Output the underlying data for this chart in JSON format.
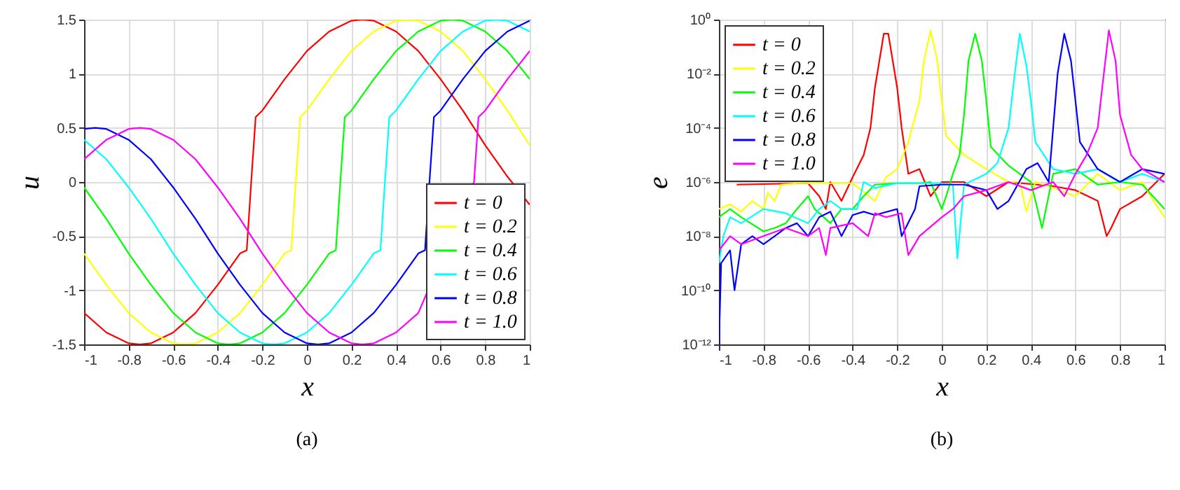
{
  "chart_data": [
    {
      "type": "line",
      "xlabel": "x",
      "ylabel": "u",
      "annotations": [
        "(a)"
      ],
      "xlim": [
        -1,
        1
      ],
      "ylim": [
        -1.5,
        1.5
      ],
      "xticks": [
        -1,
        -0.8,
        -0.6,
        -0.4,
        -0.2,
        0,
        0.2,
        0.4,
        0.6,
        0.8,
        1
      ],
      "yticks": [
        -1.5,
        -1,
        -0.5,
        0,
        0.5,
        1,
        1.5
      ],
      "grid": true,
      "legend": "bottom right",
      "series": [
        {
          "name": "t = 0",
          "color": "#ff0000",
          "x": [
            -1,
            -0.9,
            -0.8,
            -0.75,
            -0.7,
            -0.6,
            -0.5,
            -0.4,
            -0.3,
            -0.27,
            -0.25,
            -0.23,
            -0.2,
            -0.1,
            0,
            0.1,
            0.2,
            0.25,
            0.3,
            0.4,
            0.5,
            0.6,
            0.7,
            0.8,
            0.9,
            1
          ],
          "values": [
            -1.21,
            -1.39,
            -1.49,
            -1.5,
            -1.49,
            -1.39,
            -1.21,
            -0.95,
            -0.66,
            -0.63,
            0,
            0.6,
            0.66,
            0.95,
            1.21,
            1.39,
            1.49,
            1.5,
            1.49,
            1.39,
            1.21,
            0.95,
            0.66,
            0.34,
            0.05,
            -0.21
          ]
        },
        {
          "name": "t = 0.2",
          "color": "#ffff00",
          "x": [
            -1,
            -0.9,
            -0.8,
            -0.7,
            -0.6,
            -0.55,
            -0.5,
            -0.4,
            -0.3,
            -0.2,
            -0.1,
            -0.07,
            -0.05,
            -0.03,
            0,
            0.1,
            0.2,
            0.3,
            0.4,
            0.45,
            0.5,
            0.6,
            0.7,
            0.8,
            0.9,
            1
          ],
          "values": [
            -0.66,
            -0.95,
            -1.21,
            -1.39,
            -1.49,
            -1.5,
            -1.49,
            -1.39,
            -1.21,
            -0.95,
            -0.66,
            -0.63,
            0,
            0.6,
            0.66,
            0.95,
            1.21,
            1.39,
            1.49,
            1.5,
            1.49,
            1.39,
            1.21,
            0.95,
            0.66,
            0.34
          ]
        },
        {
          "name": "t = 0.4",
          "color": "#00ff00",
          "x": [
            -1,
            -0.9,
            -0.8,
            -0.7,
            -0.6,
            -0.5,
            -0.4,
            -0.35,
            -0.3,
            -0.2,
            -0.1,
            0,
            0.1,
            0.13,
            0.15,
            0.17,
            0.2,
            0.3,
            0.4,
            0.5,
            0.6,
            0.65,
            0.7,
            0.8,
            0.9,
            1
          ],
          "values": [
            -0.05,
            -0.34,
            -0.66,
            -0.95,
            -1.21,
            -1.39,
            -1.49,
            -1.5,
            -1.49,
            -1.39,
            -1.21,
            -0.95,
            -0.66,
            -0.63,
            0,
            0.6,
            0.66,
            0.95,
            1.21,
            1.39,
            1.49,
            1.5,
            1.49,
            1.39,
            1.21,
            0.95
          ]
        },
        {
          "name": "t = 0.6",
          "color": "#00ffff",
          "x": [
            -1,
            -0.9,
            -0.8,
            -0.7,
            -0.6,
            -0.5,
            -0.4,
            -0.3,
            -0.2,
            -0.15,
            -0.1,
            0,
            0.1,
            0.2,
            0.3,
            0.33,
            0.35,
            0.37,
            0.4,
            0.5,
            0.6,
            0.7,
            0.8,
            0.85,
            0.9,
            1
          ],
          "values": [
            0.39,
            0.21,
            -0.05,
            -0.34,
            -0.66,
            -0.95,
            -1.21,
            -1.39,
            -1.49,
            -1.5,
            -1.49,
            -1.39,
            -1.21,
            -0.95,
            -0.66,
            -0.63,
            0,
            0.6,
            0.66,
            0.95,
            1.21,
            1.39,
            1.49,
            1.5,
            1.49,
            1.39
          ]
        },
        {
          "name": "t = 0.8",
          "color": "#0000ff",
          "x": [
            -1,
            -0.95,
            -0.9,
            -0.8,
            -0.7,
            -0.6,
            -0.5,
            -0.4,
            -0.3,
            -0.2,
            -0.1,
            0,
            0.05,
            0.1,
            0.2,
            0.3,
            0.4,
            0.5,
            0.53,
            0.55,
            0.57,
            0.6,
            0.7,
            0.8,
            0.9,
            1
          ],
          "values": [
            0.49,
            0.5,
            0.49,
            0.39,
            0.21,
            -0.05,
            -0.34,
            -0.66,
            -0.95,
            -1.21,
            -1.39,
            -1.49,
            -1.5,
            -1.49,
            -1.39,
            -1.21,
            -0.95,
            -0.66,
            -0.63,
            0,
            0.6,
            0.66,
            0.95,
            1.21,
            1.39,
            1.49
          ]
        },
        {
          "name": "t = 1.0",
          "color": "#ff00ff",
          "x": [
            -1,
            -0.9,
            -0.8,
            -0.75,
            -0.7,
            -0.6,
            -0.5,
            -0.4,
            -0.3,
            -0.2,
            -0.1,
            0,
            0.1,
            0.2,
            0.25,
            0.3,
            0.4,
            0.5,
            0.6,
            0.7,
            0.73,
            0.75,
            0.77,
            0.8,
            0.9,
            1
          ],
          "values": [
            0.21,
            0.39,
            0.49,
            0.5,
            0.49,
            0.39,
            0.21,
            -0.05,
            -0.34,
            -0.66,
            -0.95,
            -1.21,
            -1.39,
            -1.49,
            -1.5,
            -1.49,
            -1.39,
            -1.21,
            null,
            null,
            null,
            0,
            0.6,
            0.66,
            0.95,
            1.21
          ]
        }
      ]
    },
    {
      "type": "line",
      "xlabel": "x",
      "ylabel": "e",
      "annotations": [
        "(b)"
      ],
      "log": "y",
      "xlim": [
        -1,
        1
      ],
      "ylim": [
        1e-12,
        1
      ],
      "xticks": [
        -1,
        -0.8,
        -0.6,
        -0.4,
        -0.2,
        0,
        0.2,
        0.4,
        0.6,
        0.8,
        1
      ],
      "yticks": [
        {
          "value": 1e-12,
          "label": "10⁻¹²"
        },
        {
          "value": 1e-10,
          "label": "10⁻¹⁰"
        },
        {
          "value": 1e-08,
          "label": "10⁻⁸"
        },
        {
          "value": 1e-06,
          "label": "10⁻⁶"
        },
        {
          "value": 0.0001,
          "label": "10⁻⁴"
        },
        {
          "value": 0.01,
          "label": "10⁻²"
        },
        {
          "value": 1,
          "label": "10⁰"
        }
      ],
      "grid": true,
      "legend": "top left",
      "series": [
        {
          "name": "t = 0",
          "color": "#ff0000",
          "x": [
            -0.92,
            -0.6,
            -0.55,
            -0.52,
            -0.5,
            -0.45,
            -0.4,
            -0.35,
            -0.32,
            -0.3,
            -0.28,
            -0.26,
            -0.24,
            -0.22,
            -0.2,
            -0.18,
            -0.15,
            -0.1,
            -0.05,
            0,
            0.1,
            0.2,
            0.3,
            0.5,
            0.6,
            0.7,
            0.74,
            0.76,
            0.8,
            0.9,
            1
          ],
          "values": [
            8e-07,
            9e-07,
            3e-07,
            1e-07,
            1e-06,
            2e-07,
            1.5e-06,
            1e-05,
            0.0001,
            0.003,
            0.03,
            0.3,
            0.3,
            0.03,
            0.003,
            0.0001,
            2e-06,
            3e-06,
            3e-07,
            1e-06,
            1e-06,
            3e-07,
            1e-06,
            7e-07,
            5e-07,
            2e-07,
            1e-08,
            2e-08,
            1e-07,
            3e-07,
            2e-06
          ]
        },
        {
          "name": "t = 0.2",
          "color": "#ffff00",
          "x": [
            -1,
            -0.95,
            -0.9,
            -0.85,
            -0.8,
            -0.78,
            -0.75,
            -0.72,
            -0.65,
            -0.5,
            -0.4,
            -0.3,
            -0.25,
            -0.2,
            -0.15,
            -0.1,
            -0.08,
            -0.05,
            -0.02,
            0,
            0.02,
            0.1,
            0.2,
            0.3,
            0.35,
            0.38,
            0.42,
            0.5,
            0.6,
            0.7,
            0.8,
            0.9,
            0.95,
            1
          ],
          "values": [
            1e-07,
            1.5e-07,
            8e-08,
            2e-07,
            1e-07,
            4e-07,
            2e-07,
            8e-07,
            9e-07,
            9e-07,
            9e-07,
            2e-07,
            1.5e-06,
            3e-06,
            3e-05,
            0.001,
            0.03,
            0.4,
            0.03,
            0.001,
            5e-05,
            1e-05,
            3e-06,
            1e-06,
            1e-06,
            8e-08,
            1e-06,
            6e-07,
            3e-07,
            2e-06,
            5e-07,
            1e-06,
            2e-07,
            5e-08
          ]
        },
        {
          "name": "t = 0.4",
          "color": "#00ff00",
          "x": [
            -1,
            -0.95,
            -0.9,
            -0.8,
            -0.75,
            -0.7,
            -0.65,
            -0.6,
            -0.57,
            -0.5,
            -0.45,
            -0.4,
            -0.35,
            -0.3,
            -0.2,
            -0.1,
            -0.05,
            0,
            0.02,
            0.05,
            0.08,
            0.1,
            0.12,
            0.15,
            0.18,
            0.2,
            0.22,
            0.3,
            0.4,
            0.45,
            0.5,
            0.6,
            0.7,
            0.8,
            0.9,
            1
          ],
          "values": [
            5e-08,
            1e-07,
            5e-08,
            1.5e-08,
            2e-08,
            3e-08,
            1e-07,
            3e-07,
            1e-07,
            3e-08,
            1e-07,
            1e-07,
            3e-07,
            8e-07,
            9e-07,
            9e-07,
            1e-06,
            1e-07,
            3e-07,
            2e-06,
            1e-05,
            0.0003,
            0.03,
            0.3,
            0.03,
            0.001,
            2e-05,
            4e-06,
            1e-06,
            2e-08,
            2e-06,
            3e-06,
            8e-07,
            1e-06,
            8e-07,
            1e-07
          ]
        },
        {
          "name": "t = 0.6",
          "color": "#00ffff",
          "x": [
            -1,
            -0.98,
            -0.95,
            -0.9,
            -0.8,
            -0.7,
            -0.6,
            -0.55,
            -0.5,
            -0.45,
            -0.38,
            -0.35,
            -0.3,
            -0.2,
            -0.1,
            0,
            0.05,
            0.07,
            0.1,
            0.2,
            0.25,
            0.3,
            0.32,
            0.35,
            0.38,
            0.4,
            0.42,
            0.5,
            0.6,
            0.7,
            0.8,
            0.9,
            1
          ],
          "values": [
            1e-09,
            1e-08,
            5e-08,
            3e-08,
            1e-07,
            7e-08,
            3e-08,
            1e-07,
            2e-07,
            1e-07,
            1e-07,
            1e-06,
            6e-07,
            9e-07,
            9e-07,
            9e-07,
            8e-07,
            1.5e-09,
            8e-07,
            2e-06,
            5e-06,
            0.0001,
            0.003,
            0.3,
            0.02,
            0.001,
            3e-05,
            3e-06,
            2e-06,
            3e-06,
            1e-06,
            2e-06,
            1e-06
          ]
        },
        {
          "name": "t = 0.8",
          "color": "#0000ff",
          "x": [
            -1,
            -0.99,
            -0.95,
            -0.93,
            -0.9,
            -0.85,
            -0.8,
            -0.75,
            -0.7,
            -0.65,
            -0.6,
            -0.55,
            -0.5,
            -0.45,
            -0.4,
            -0.35,
            -0.3,
            -0.2,
            -0.18,
            -0.12,
            -0.1,
            0,
            0.1,
            0.2,
            0.25,
            0.3,
            0.38,
            0.43,
            0.48,
            0.5,
            0.52,
            0.55,
            0.58,
            0.6,
            0.62,
            0.7,
            0.8,
            0.9,
            1
          ],
          "values": [
            1e-12,
            1e-09,
            3e-09,
            1e-10,
            5e-09,
            1e-08,
            5e-09,
            1e-08,
            2e-08,
            3e-08,
            1e-08,
            5e-08,
            8e-08,
            1e-08,
            6e-08,
            8e-08,
            6e-08,
            1e-07,
            1e-08,
            1e-07,
            7e-07,
            8e-07,
            8e-07,
            5e-07,
            1e-07,
            2e-07,
            3e-06,
            5e-06,
            1e-06,
            0.0001,
            0.01,
            0.3,
            0.03,
            0.001,
            3e-05,
            3e-06,
            1e-06,
            3e-06,
            2e-06
          ]
        },
        {
          "name": "t = 1.0",
          "color": "#ff00ff",
          "x": [
            -1,
            -0.95,
            -0.9,
            -0.8,
            -0.7,
            -0.6,
            -0.55,
            -0.52,
            -0.5,
            -0.4,
            -0.33,
            -0.3,
            -0.25,
            -0.18,
            -0.15,
            -0.1,
            0,
            0.05,
            0.1,
            0.2,
            0.3,
            0.4,
            0.5,
            0.55,
            0.6,
            0.65,
            0.7,
            0.72,
            0.75,
            0.78,
            0.8,
            0.85,
            0.9,
            1
          ],
          "values": [
            3e-09,
            1e-08,
            5e-09,
            1e-08,
            2e-08,
            1e-08,
            2e-08,
            2e-09,
            2e-08,
            3e-08,
            1e-08,
            7e-08,
            5e-08,
            7e-08,
            2e-09,
            1e-08,
            5e-08,
            1e-07,
            3e-07,
            5e-07,
            1e-06,
            5e-07,
            1e-06,
            3e-07,
            2e-06,
            1e-05,
            0.0001,
            0.003,
            0.4,
            0.03,
            0.0003,
            1e-05,
            3e-06,
            1e-06
          ]
        }
      ]
    }
  ]
}
